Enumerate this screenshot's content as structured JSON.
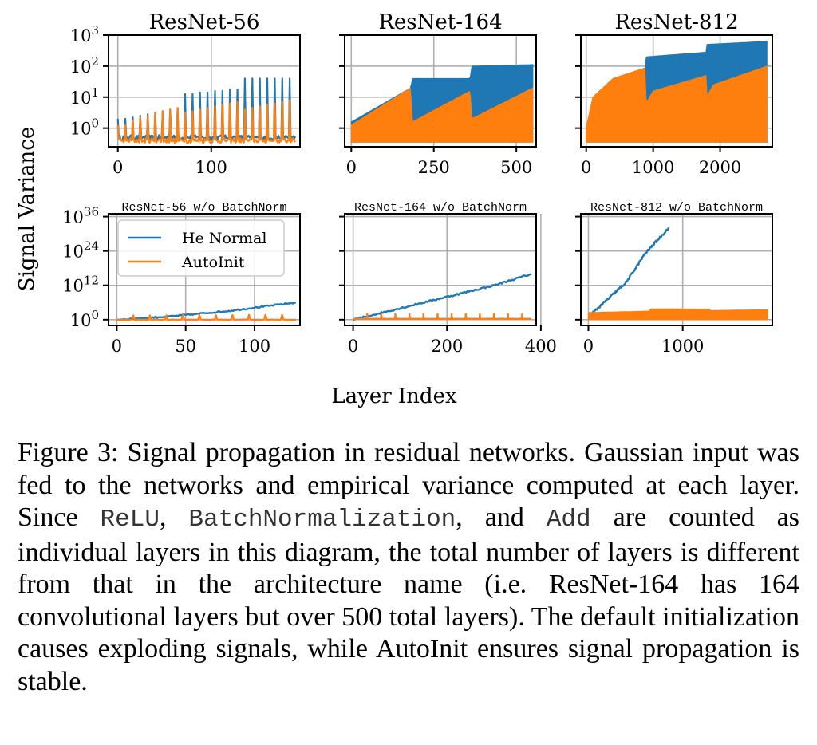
{
  "figure": {
    "y_axis_label": "Signal Variance",
    "x_axis_label": "Layer Index"
  },
  "colors": {
    "he": "#1f77b4",
    "auto": "#ff7f0e",
    "grid": "#b0b0b0"
  },
  "chart_data": [
    {
      "type": "line",
      "title": "ResNet-56",
      "yscale": "log",
      "xlim": [
        -10,
        195
      ],
      "x_ticks": [
        0,
        100
      ],
      "x_tick_labels": [
        "0",
        "100"
      ],
      "ylim_exp": [
        -0.6,
        3
      ],
      "y_tick_exps": [
        0,
        1,
        2,
        3
      ],
      "y_tick_labels": [
        "10^0",
        "10^1",
        "10^2",
        "10^3"
      ],
      "series": [
        {
          "name": "He Normal",
          "kind": "spiky",
          "n": 190,
          "base_exp": -0.3,
          "peaks": [
            {
              "x": 0,
              "y_exp": 0.3
            },
            {
              "x": 8,
              "y_exp": 0.3
            },
            {
              "x": 16,
              "y_exp": 0.35
            },
            {
              "x": 24,
              "y_exp": 0.4
            },
            {
              "x": 32,
              "y_exp": 0.45
            },
            {
              "x": 40,
              "y_exp": 0.5
            },
            {
              "x": 48,
              "y_exp": 0.55
            },
            {
              "x": 56,
              "y_exp": 0.6
            },
            {
              "x": 64,
              "y_exp": 0.65
            },
            {
              "x": 72,
              "y_exp": 1.1
            },
            {
              "x": 80,
              "y_exp": 1.1
            },
            {
              "x": 88,
              "y_exp": 1.15
            },
            {
              "x": 96,
              "y_exp": 1.15
            },
            {
              "x": 104,
              "y_exp": 1.2
            },
            {
              "x": 112,
              "y_exp": 1.2
            },
            {
              "x": 120,
              "y_exp": 1.25
            },
            {
              "x": 128,
              "y_exp": 1.25
            },
            {
              "x": 136,
              "y_exp": 1.6
            },
            {
              "x": 144,
              "y_exp": 1.6
            },
            {
              "x": 152,
              "y_exp": 1.6
            },
            {
              "x": 160,
              "y_exp": 1.6
            },
            {
              "x": 168,
              "y_exp": 1.6
            },
            {
              "x": 176,
              "y_exp": 1.6
            },
            {
              "x": 184,
              "y_exp": 1.6
            }
          ]
        },
        {
          "name": "AutoInit",
          "kind": "spiky",
          "n": 190,
          "base_exp": -0.4,
          "peaks": [
            {
              "x": 0,
              "y_exp": 0.1
            },
            {
              "x": 8,
              "y_exp": 0.1
            },
            {
              "x": 16,
              "y_exp": 0.25
            },
            {
              "x": 24,
              "y_exp": 0.35
            },
            {
              "x": 32,
              "y_exp": 0.4
            },
            {
              "x": 40,
              "y_exp": 0.5
            },
            {
              "x": 48,
              "y_exp": 0.55
            },
            {
              "x": 56,
              "y_exp": 0.6
            },
            {
              "x": 64,
              "y_exp": 0.65
            },
            {
              "x": 72,
              "y_exp": 0.5
            },
            {
              "x": 80,
              "y_exp": 0.55
            },
            {
              "x": 88,
              "y_exp": 0.6
            },
            {
              "x": 96,
              "y_exp": 0.65
            },
            {
              "x": 104,
              "y_exp": 0.7
            },
            {
              "x": 112,
              "y_exp": 0.75
            },
            {
              "x": 120,
              "y_exp": 0.8
            },
            {
              "x": 128,
              "y_exp": 0.85
            },
            {
              "x": 136,
              "y_exp": 0.6
            },
            {
              "x": 144,
              "y_exp": 0.65
            },
            {
              "x": 152,
              "y_exp": 0.7
            },
            {
              "x": 160,
              "y_exp": 0.75
            },
            {
              "x": 168,
              "y_exp": 0.8
            },
            {
              "x": 176,
              "y_exp": 0.85
            },
            {
              "x": 184,
              "y_exp": 0.9
            }
          ]
        }
      ]
    },
    {
      "type": "line",
      "title": "ResNet-164",
      "yscale": "log",
      "xlim": [
        -20,
        560
      ],
      "x_ticks": [
        0,
        250,
        500
      ],
      "x_tick_labels": [
        "0",
        "250",
        "500"
      ],
      "ylim_exp": [
        -0.6,
        3
      ],
      "y_tick_exps": [
        0,
        1,
        2,
        3
      ],
      "y_tick_labels": [
        "10^0",
        "10^1",
        "10^2",
        "10^3"
      ],
      "series": [
        {
          "name": "He Normal",
          "kind": "fill_band",
          "x_start": 0,
          "x_end": 550,
          "low_exp": -0.45,
          "top": [
            {
              "x": 0,
              "y_exp": 0.2
            },
            {
              "x": 180,
              "y_exp": 1.3
            },
            {
              "x": 185,
              "y_exp": 1.6
            },
            {
              "x": 360,
              "y_exp": 1.6
            },
            {
              "x": 365,
              "y_exp": 2.0
            },
            {
              "x": 550,
              "y_exp": 2.05
            }
          ]
        },
        {
          "name": "AutoInit",
          "kind": "fill_band",
          "x_start": 0,
          "x_end": 550,
          "low_exp": -0.45,
          "top": [
            {
              "x": 0,
              "y_exp": 0.1
            },
            {
              "x": 180,
              "y_exp": 1.3
            },
            {
              "x": 185,
              "y_exp": 0.2
            },
            {
              "x": 360,
              "y_exp": 1.2
            },
            {
              "x": 365,
              "y_exp": 0.3
            },
            {
              "x": 550,
              "y_exp": 1.3
            }
          ]
        }
      ]
    },
    {
      "type": "line",
      "title": "ResNet-812",
      "yscale": "log",
      "xlim": [
        -80,
        2780
      ],
      "x_ticks": [
        0,
        1000,
        2000
      ],
      "x_tick_labels": [
        "0",
        "1000",
        "2000"
      ],
      "ylim_exp": [
        -0.6,
        3
      ],
      "y_tick_exps": [
        0,
        1,
        2,
        3
      ],
      "y_tick_labels": [
        "10^0",
        "10^1",
        "10^2",
        "10^3"
      ],
      "series": [
        {
          "name": "He Normal",
          "kind": "fill_band",
          "x_start": 0,
          "x_end": 2700,
          "low_exp": -0.45,
          "top": [
            {
              "x": 0,
              "y_exp": 0.0
            },
            {
              "x": 100,
              "y_exp": 1.0
            },
            {
              "x": 400,
              "y_exp": 1.6
            },
            {
              "x": 890,
              "y_exp": 1.95
            },
            {
              "x": 895,
              "y_exp": 2.3
            },
            {
              "x": 1790,
              "y_exp": 2.45
            },
            {
              "x": 1795,
              "y_exp": 2.7
            },
            {
              "x": 2700,
              "y_exp": 2.8
            }
          ]
        },
        {
          "name": "AutoInit",
          "kind": "fill_band",
          "x_start": 0,
          "x_end": 2700,
          "low_exp": -0.45,
          "top": [
            {
              "x": 0,
              "y_exp": 0.0
            },
            {
              "x": 100,
              "y_exp": 1.0
            },
            {
              "x": 400,
              "y_exp": 1.6
            },
            {
              "x": 890,
              "y_exp": 1.95
            },
            {
              "x": 895,
              "y_exp": 0.8
            },
            {
              "x": 1000,
              "y_exp": 1.2
            },
            {
              "x": 1790,
              "y_exp": 1.7
            },
            {
              "x": 1795,
              "y_exp": 1.0
            },
            {
              "x": 1900,
              "y_exp": 1.4
            },
            {
              "x": 2700,
              "y_exp": 2.0
            }
          ]
        }
      ]
    },
    {
      "type": "line",
      "title": "ResNet-56 w/o BatchNorm",
      "yscale": "log",
      "xlim": [
        -6,
        133
      ],
      "x_ticks": [
        0,
        50,
        100
      ],
      "x_tick_labels": [
        "0",
        "50",
        "100"
      ],
      "ylim_exp": [
        -2,
        37
      ],
      "y_tick_exps": [
        0,
        12,
        24,
        36
      ],
      "y_tick_labels": [
        "10^0",
        "10^12",
        "10^24",
        "10^36"
      ],
      "legend": {
        "position": "upper-left",
        "entries": [
          "He Normal",
          "AutoInit"
        ]
      },
      "series": [
        {
          "name": "He Normal",
          "kind": "noisy_line",
          "noise": 0.5,
          "points": [
            {
              "x": 0,
              "y_exp": 0
            },
            {
              "x": 40,
              "y_exp": 1.2
            },
            {
              "x": 80,
              "y_exp": 3
            },
            {
              "x": 130,
              "y_exp": 6
            }
          ]
        },
        {
          "name": "AutoInit",
          "kind": "spiky",
          "n": 130,
          "base_exp": 0,
          "peaks": [
            {
              "x": 12,
              "y_exp": 1.5
            },
            {
              "x": 24,
              "y_exp": 1.5
            },
            {
              "x": 36,
              "y_exp": 1.5
            },
            {
              "x": 48,
              "y_exp": 1.6
            },
            {
              "x": 60,
              "y_exp": 1.6
            },
            {
              "x": 72,
              "y_exp": 1.6
            },
            {
              "x": 84,
              "y_exp": 1.6
            },
            {
              "x": 96,
              "y_exp": 1.7
            },
            {
              "x": 108,
              "y_exp": 1.7
            },
            {
              "x": 120,
              "y_exp": 1.7
            }
          ]
        }
      ]
    },
    {
      "type": "line",
      "title": "ResNet-164 w/o BatchNorm",
      "yscale": "log",
      "xlim": [
        -18,
        390
      ],
      "x_ticks": [
        0,
        200,
        400
      ],
      "x_tick_labels": [
        "0",
        "200",
        "400"
      ],
      "ylim_exp": [
        -2,
        37
      ],
      "y_tick_exps": [
        0,
        12,
        24,
        36
      ],
      "y_tick_labels": [
        "10^0",
        "10^12",
        "10^24",
        "10^36"
      ],
      "series": [
        {
          "name": "He Normal",
          "kind": "noisy_line",
          "noise": 0.6,
          "points": [
            {
              "x": 0,
              "y_exp": 0
            },
            {
              "x": 100,
              "y_exp": 4
            },
            {
              "x": 200,
              "y_exp": 8
            },
            {
              "x": 300,
              "y_exp": 12
            },
            {
              "x": 380,
              "y_exp": 16
            }
          ]
        },
        {
          "name": "AutoInit",
          "kind": "spiky",
          "n": 380,
          "base_exp": 0.3,
          "peaks": [
            {
              "x": 30,
              "y_exp": 2
            },
            {
              "x": 60,
              "y_exp": 2
            },
            {
              "x": 90,
              "y_exp": 2
            },
            {
              "x": 120,
              "y_exp": 2
            },
            {
              "x": 150,
              "y_exp": 2
            },
            {
              "x": 180,
              "y_exp": 2
            },
            {
              "x": 210,
              "y_exp": 2
            },
            {
              "x": 240,
              "y_exp": 2
            },
            {
              "x": 270,
              "y_exp": 2
            },
            {
              "x": 300,
              "y_exp": 2
            },
            {
              "x": 330,
              "y_exp": 2
            },
            {
              "x": 360,
              "y_exp": 2
            }
          ]
        }
      ]
    },
    {
      "type": "line",
      "title": "ResNet-812 w/o BatchNorm",
      "yscale": "log",
      "xlim": [
        -80,
        1950
      ],
      "x_ticks": [
        0,
        1000
      ],
      "x_tick_labels": [
        "0",
        "1000"
      ],
      "ylim_exp": [
        -2,
        37
      ],
      "y_tick_exps": [
        0,
        12,
        24,
        36
      ],
      "y_tick_labels": [
        "10^0",
        "10^12",
        "10^24",
        "10^36"
      ],
      "series": [
        {
          "name": "He Normal",
          "kind": "noisy_line",
          "noise": 0.8,
          "points": [
            {
              "x": 0,
              "y_exp": 1
            },
            {
              "x": 200,
              "y_exp": 7
            },
            {
              "x": 400,
              "y_exp": 13
            },
            {
              "x": 600,
              "y_exp": 23
            },
            {
              "x": 850,
              "y_exp": 32
            }
          ]
        },
        {
          "name": "AutoInit",
          "kind": "fill_band",
          "x_start": 0,
          "x_end": 1900,
          "low_exp": 0,
          "top": [
            {
              "x": 0,
              "y_exp": 2.5
            },
            {
              "x": 650,
              "y_exp": 3
            },
            {
              "x": 655,
              "y_exp": 3.8
            },
            {
              "x": 1290,
              "y_exp": 3.7
            },
            {
              "x": 1295,
              "y_exp": 3.2
            },
            {
              "x": 1900,
              "y_exp": 3.5
            }
          ]
        }
      ]
    }
  ],
  "caption": {
    "part1": "Figure 3: Signal propagation in residual networks. Gaussian input was fed to the networks and empirical variance computed at each layer. Since ",
    "code1": "ReLU",
    "sep1": ", ",
    "code2": "BatchNormalization",
    "sep2": ", and ",
    "code3": "Add",
    "part2": " are counted as individual layers in this diagram, the total number of layers is different from that in the architecture name (i.e. ResNet-164 has 164 convolutional layers but over 500 total layers). The default initialization causes exploding signals, while AutoInit ensures signal propagation is stable."
  }
}
